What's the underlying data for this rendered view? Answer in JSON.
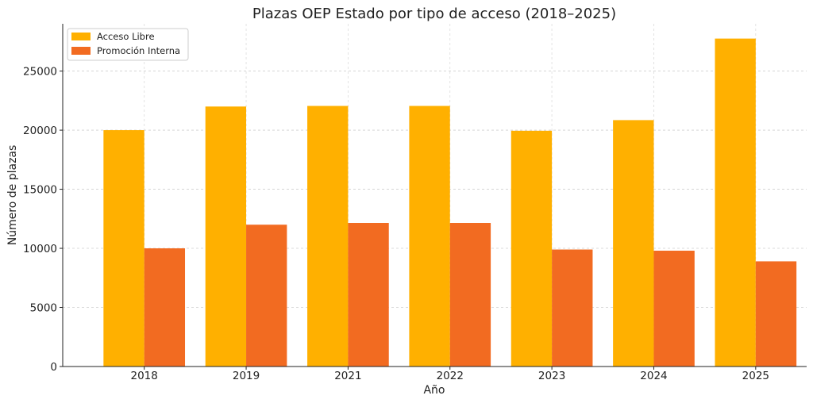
{
  "chart_data": {
    "type": "bar",
    "title": "Plazas OEP Estado por tipo de acceso (2018–2025)",
    "xlabel": "Año",
    "ylabel": "Número de plazas",
    "categories": [
      "2018",
      "2019",
      "2021",
      "2022",
      "2023",
      "2024",
      "2025"
    ],
    "series": [
      {
        "name": "Acceso Libre",
        "color": "#FFB000",
        "values": [
          20000,
          22000,
          22050,
          22050,
          19950,
          20850,
          27750
        ]
      },
      {
        "name": "Promoción Interna",
        "color": "#F26B21",
        "values": [
          10000,
          12000,
          12150,
          12150,
          9900,
          9800,
          8900
        ]
      }
    ],
    "ylim": [
      0,
      29000
    ],
    "yticks": [
      0,
      5000,
      10000,
      15000,
      20000,
      25000
    ],
    "grid": true,
    "legend_position": "top-left"
  }
}
